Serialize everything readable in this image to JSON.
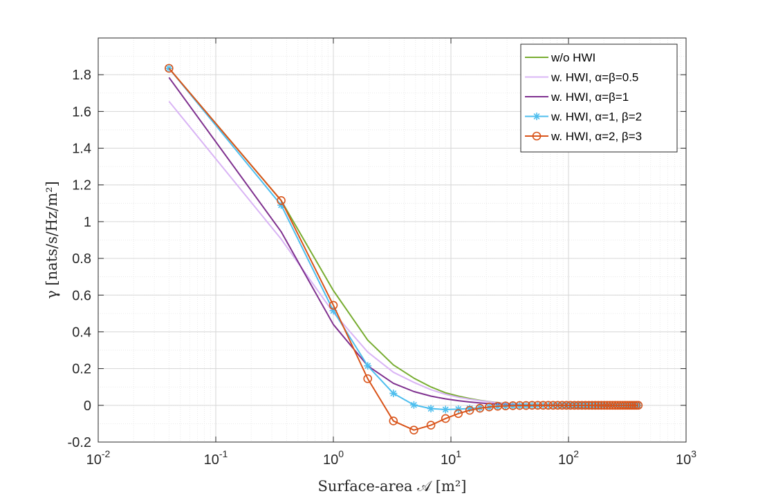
{
  "chart_data": {
    "type": "line",
    "xscale": "log",
    "xlim": [
      0.01,
      1000
    ],
    "ylim": [
      -0.2,
      2.0
    ],
    "grid": true,
    "minor_grid": true,
    "xlabel": "Surface-area 𝒜 [m²]",
    "ylabel": "γ [nats/s/Hz/m²]",
    "x_ticks": [
      {
        "value": 0.01,
        "base": "10",
        "exp": "-2"
      },
      {
        "value": 0.1,
        "base": "10",
        "exp": "-1"
      },
      {
        "value": 1,
        "base": "10",
        "exp": "0"
      },
      {
        "value": 10,
        "base": "10",
        "exp": "1"
      },
      {
        "value": 100,
        "base": "10",
        "exp": "2"
      },
      {
        "value": 1000,
        "base": "10",
        "exp": "3"
      }
    ],
    "y_ticks": [
      {
        "value": -0.2,
        "label": "-0.2"
      },
      {
        "value": 0,
        "label": "0"
      },
      {
        "value": 0.2,
        "label": "0.2"
      },
      {
        "value": 0.4,
        "label": "0.4"
      },
      {
        "value": 0.6,
        "label": "0.6"
      },
      {
        "value": 0.8,
        "label": "0.8"
      },
      {
        "value": 1.0,
        "label": "1"
      },
      {
        "value": 1.2,
        "label": "1.2"
      },
      {
        "value": 1.4,
        "label": "1.4"
      },
      {
        "value": 1.6,
        "label": "1.6"
      },
      {
        "value": 1.8,
        "label": "1.8"
      }
    ],
    "legend_position": "top-right",
    "series": [
      {
        "name": "w/o HWI",
        "color": "#77AC30",
        "marker": "none",
        "x": [
          0.04,
          0.36,
          1.0,
          1.96,
          3.24,
          4.84,
          6.76,
          9.0,
          11.56,
          14.44,
          17.64,
          21.16,
          25.0,
          29.16,
          33.64,
          38.44,
          50,
          100,
          200,
          400
        ],
        "y": [
          1.835,
          1.115,
          0.625,
          0.355,
          0.22,
          0.148,
          0.1,
          0.068,
          0.05,
          0.037,
          0.027,
          0.02,
          0.015,
          0.011,
          0.008,
          0.006,
          0.003,
          0.001,
          0.0,
          0.0
        ]
      },
      {
        "name": "w. HWI, α=β=0.5",
        "color": "#D9B4F5",
        "marker": "none",
        "x": [
          0.04,
          0.36,
          1.0,
          1.96,
          3.24,
          4.84,
          6.76,
          9.0,
          11.56,
          14.44,
          17.64,
          21.16,
          25.0,
          29.16,
          33.64,
          38.44,
          50,
          100,
          200,
          400
        ],
        "y": [
          1.655,
          0.905,
          0.505,
          0.29,
          0.18,
          0.125,
          0.085,
          0.06,
          0.044,
          0.033,
          0.025,
          0.019,
          0.014,
          0.01,
          0.008,
          0.006,
          0.003,
          0.001,
          0.0,
          0.0
        ]
      },
      {
        "name": "w. HWI, α=β=1",
        "color": "#7E2F8E",
        "marker": "none",
        "x": [
          0.04,
          0.36,
          1.0,
          1.96,
          3.24,
          4.84,
          6.76,
          9.0,
          11.56,
          14.44,
          17.64,
          21.16,
          25.0,
          29.16,
          33.64,
          38.44,
          50,
          100,
          200,
          400
        ],
        "y": [
          1.785,
          0.945,
          0.44,
          0.215,
          0.12,
          0.075,
          0.05,
          0.035,
          0.025,
          0.018,
          0.013,
          0.009,
          0.007,
          0.005,
          0.004,
          0.003,
          0.001,
          0.0,
          0.0,
          0.0
        ]
      },
      {
        "name": "w. HWI, α=1, β=2",
        "color": "#4DBEEE",
        "marker": "star",
        "x": [
          0.04,
          0.36,
          1.0,
          1.96,
          3.24,
          4.84,
          6.76,
          9.0,
          11.56,
          14.44,
          17.64,
          21.16,
          25.0,
          29.16,
          33.64,
          38.44,
          43.56,
          49.0,
          54.76,
          60.84,
          67.24,
          73.96,
          81.0,
          88.36,
          96.04,
          104.04,
          112.36,
          121.0,
          129.96,
          139.24,
          148.84,
          158.76,
          169.0,
          179.56,
          190.44,
          201.64,
          213.16,
          225.0,
          237.16,
          249.64,
          262.44,
          275.56,
          289.0,
          302.76,
          316.84,
          331.24,
          345.96,
          361.0,
          376.36,
          392.04
        ],
        "y": [
          1.835,
          1.09,
          0.515,
          0.215,
          0.065,
          0.002,
          -0.018,
          -0.023,
          -0.021,
          -0.017,
          -0.013,
          -0.01,
          -0.007,
          -0.005,
          -0.004,
          -0.003,
          -0.002,
          -0.001,
          -0.001,
          0.0,
          0.0,
          0.0,
          0.0,
          0.0,
          0.0,
          0.0,
          0.0,
          0.0,
          0.0,
          0.0,
          0.0,
          0.0,
          0.0,
          0.0,
          0.0,
          0.0,
          0.0,
          0.0,
          0.0,
          0.0,
          0.0,
          0.0,
          0.0,
          0.0,
          0.0,
          0.0,
          0.0,
          0.0,
          0.0,
          0.0
        ]
      },
      {
        "name": "w. HWI, α=2, β=3",
        "color": "#D95319",
        "marker": "circle",
        "x": [
          0.04,
          0.36,
          1.0,
          1.96,
          3.24,
          4.84,
          6.76,
          9.0,
          11.56,
          14.44,
          17.64,
          21.16,
          25.0,
          29.16,
          33.64,
          38.44,
          43.56,
          49.0,
          54.76,
          60.84,
          67.24,
          73.96,
          81.0,
          88.36,
          96.04,
          104.04,
          112.36,
          121.0,
          129.96,
          139.24,
          148.84,
          158.76,
          169.0,
          179.56,
          190.44,
          201.64,
          213.16,
          225.0,
          237.16,
          249.64,
          262.44,
          275.56,
          289.0,
          302.76,
          316.84,
          331.24,
          345.96,
          361.0,
          376.36,
          392.04
        ],
        "y": [
          1.835,
          1.115,
          0.545,
          0.145,
          -0.085,
          -0.135,
          -0.108,
          -0.072,
          -0.045,
          -0.027,
          -0.016,
          -0.009,
          -0.005,
          -0.003,
          -0.002,
          -0.001,
          -0.001,
          0.0,
          0.0,
          0.0,
          0.0,
          0.0,
          0.0,
          0.0,
          0.0,
          0.0,
          0.0,
          0.0,
          0.0,
          0.0,
          0.0,
          0.0,
          0.0,
          0.0,
          0.0,
          0.0,
          0.0,
          0.0,
          0.0,
          0.0,
          0.0,
          0.0,
          0.0,
          0.0,
          0.0,
          0.0,
          0.0,
          0.0,
          0.0,
          0.0
        ]
      }
    ]
  }
}
